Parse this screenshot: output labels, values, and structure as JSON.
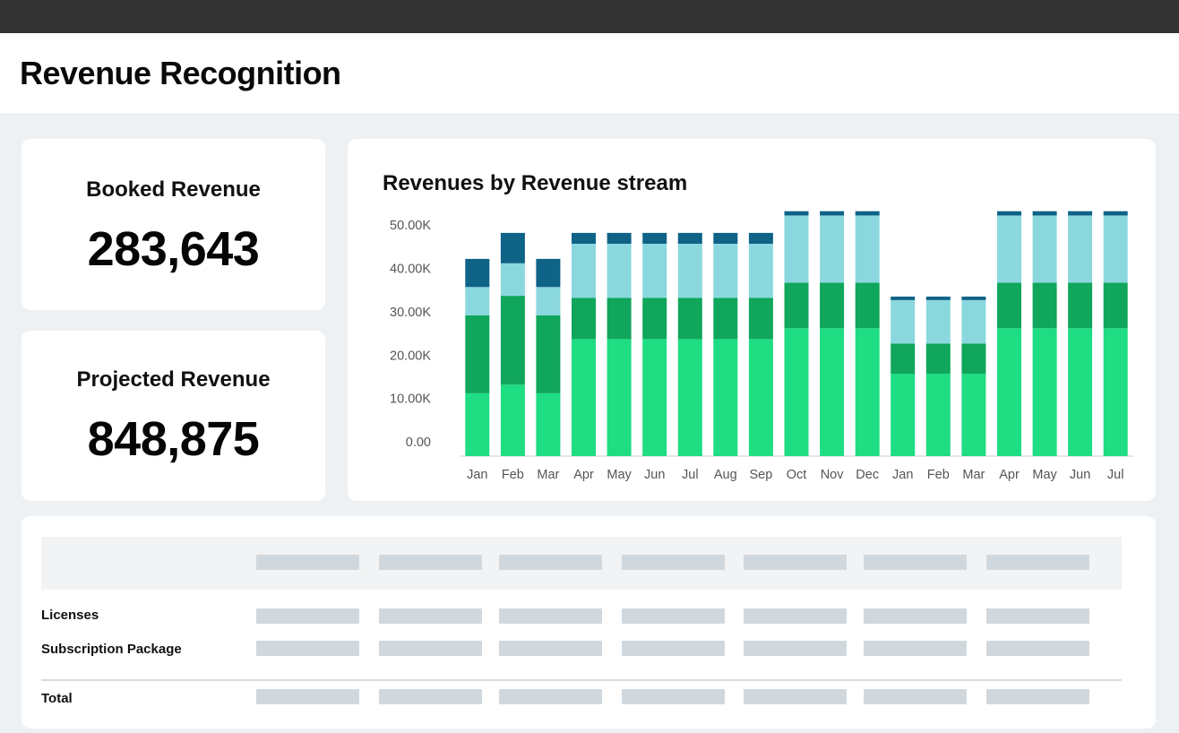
{
  "page": {
    "title": "Revenue Recognition"
  },
  "kpis": {
    "booked": {
      "label": "Booked Revenue",
      "value": "283,643"
    },
    "projected": {
      "label": "Projected Revenue",
      "value": "848,875"
    }
  },
  "chart_data": {
    "type": "bar",
    "stacked": true,
    "title": "Revenues by Revenue stream",
    "xlabel": "",
    "ylabel": "",
    "ylim": [
      0,
      55000
    ],
    "y_ticks": [
      0,
      10000,
      20000,
      30000,
      40000,
      50000
    ],
    "y_tick_labels": [
      "0.00",
      "10.00K",
      "20.00K",
      "30.00K",
      "40.00K",
      "50.00K"
    ],
    "categories": [
      "Jan",
      "Feb",
      "Mar",
      "Apr",
      "May",
      "Jun",
      "Jul",
      "Aug",
      "Sep",
      "Oct",
      "Nov",
      "Dec",
      "Jan",
      "Feb",
      "Mar",
      "Apr",
      "May",
      "Jun",
      "Jul"
    ],
    "grid": false,
    "legend": "none",
    "series": [
      {
        "values": [
          14500,
          16500,
          14500,
          27000,
          27000,
          27000,
          27000,
          27000,
          27000,
          29500,
          29500,
          29500,
          19000,
          19000,
          19000,
          29500,
          29500,
          29500,
          29500
        ]
      },
      {
        "values": [
          18000,
          20500,
          18000,
          9500,
          9500,
          9500,
          9500,
          9500,
          9500,
          10500,
          10500,
          10500,
          7000,
          7000,
          7000,
          10500,
          10500,
          10500,
          10500
        ]
      },
      {
        "values": [
          6500,
          7500,
          6500,
          12500,
          12500,
          12500,
          12500,
          12500,
          12500,
          15500,
          15500,
          15500,
          10000,
          10000,
          10000,
          15500,
          15500,
          15500,
          15500
        ]
      },
      {
        "values": [
          6500,
          7000,
          6500,
          2500,
          2500,
          2500,
          2500,
          2500,
          2500,
          1000,
          1000,
          1000,
          800,
          800,
          800,
          1000,
          1000,
          1000,
          1000
        ]
      }
    ],
    "colors": [
      "#1edd82",
      "#10a65c",
      "#8ad8de",
      "#0e6387"
    ]
  },
  "table": {
    "rows": [
      {
        "label": "Licenses"
      },
      {
        "label": "Subscription Package"
      },
      {
        "label": "Total"
      }
    ]
  }
}
